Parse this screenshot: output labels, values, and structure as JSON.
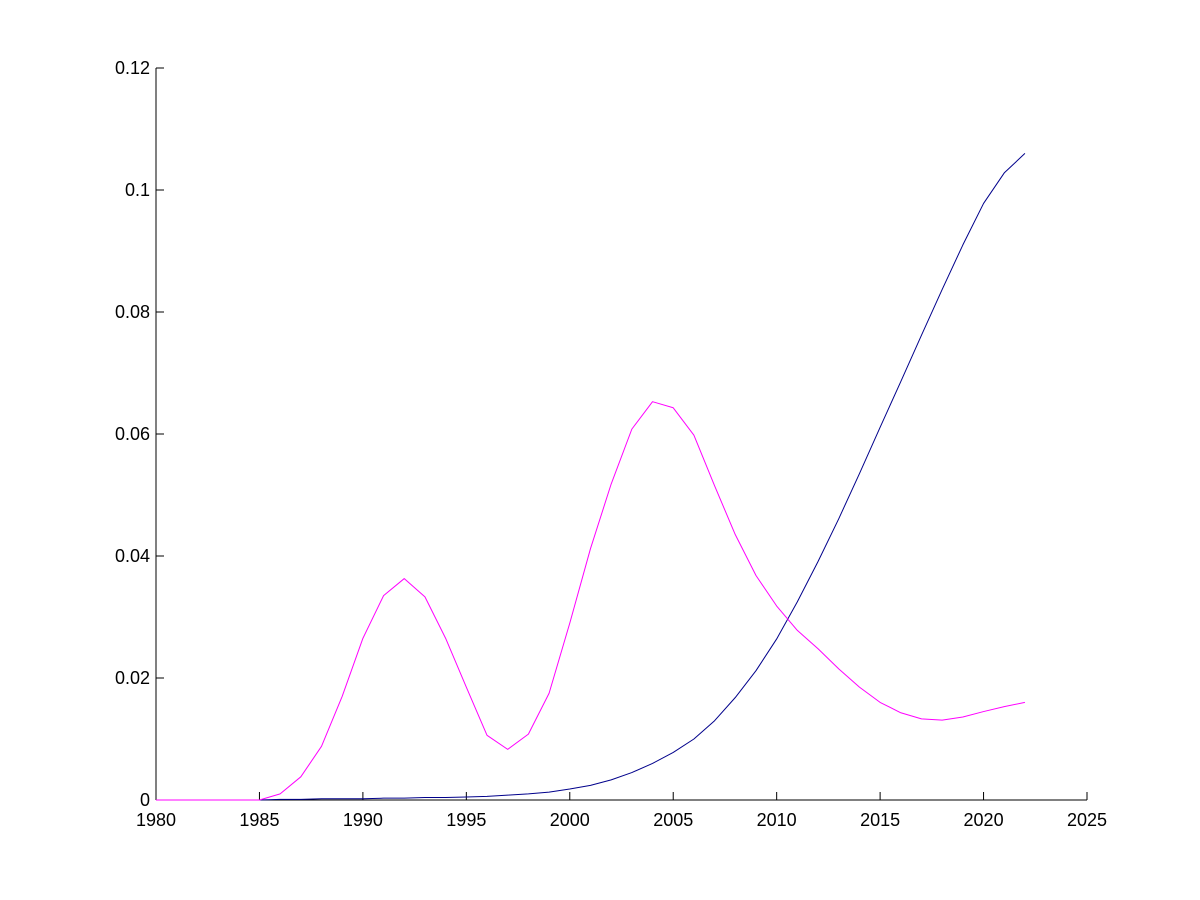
{
  "chart_data": {
    "type": "line",
    "title": "",
    "xlabel": "",
    "ylabel": "",
    "xlim": [
      1980,
      2025
    ],
    "ylim": [
      0,
      0.12
    ],
    "grid": false,
    "legend": "none",
    "xticks": [
      1980,
      1985,
      1990,
      1995,
      2000,
      2005,
      2010,
      2015,
      2020,
      2025
    ],
    "xtick_labels": [
      "1980",
      "1985",
      "1990",
      "1995",
      "2000",
      "2005",
      "2010",
      "2015",
      "2020",
      "2025"
    ],
    "yticks": [
      0,
      0.02,
      0.04,
      0.06,
      0.08,
      0.1,
      0.12
    ],
    "ytick_labels": [
      "0",
      "0.02",
      "0.04",
      "0.06",
      "0.08",
      "0.1",
      "0.12"
    ],
    "series": [
      {
        "color": "#00008b",
        "x": [
          1980,
          1981,
          1982,
          1983,
          1984,
          1985,
          1986,
          1987,
          1988,
          1989,
          1990,
          1991,
          1992,
          1993,
          1994,
          1995,
          1996,
          1997,
          1998,
          1999,
          2000,
          2001,
          2002,
          2003,
          2004,
          2005,
          2006,
          2007,
          2008,
          2009,
          2010,
          2011,
          2012,
          2013,
          2014,
          2015,
          2016,
          2017,
          2018,
          2019,
          2020,
          2021,
          2022
        ],
        "y": [
          0,
          0,
          0,
          0,
          0,
          0,
          0.0001,
          0.0001,
          0.0002,
          0.0002,
          0.0002,
          0.0003,
          0.0003,
          0.0004,
          0.0004,
          0.0005,
          0.0006,
          0.0008,
          0.001,
          0.0013,
          0.0018,
          0.0024,
          0.0033,
          0.0045,
          0.006,
          0.0078,
          0.01,
          0.013,
          0.0168,
          0.0212,
          0.0264,
          0.0325,
          0.0391,
          0.0461,
          0.0535,
          0.0611,
          0.0686,
          0.0762,
          0.0837,
          0.091,
          0.0978,
          0.1028,
          0.106
        ]
      },
      {
        "color": "#ff00ff",
        "x": [
          1980,
          1981,
          1982,
          1983,
          1984,
          1985,
          1986,
          1987,
          1988,
          1989,
          1990,
          1991,
          1992,
          1993,
          1994,
          1995,
          1996,
          1997,
          1998,
          1999,
          2000,
          2001,
          2002,
          2003,
          2004,
          2005,
          2006,
          2007,
          2008,
          2009,
          2010,
          2011,
          2012,
          2013,
          2014,
          2015,
          2016,
          2017,
          2018,
          2019,
          2020,
          2021,
          2022
        ],
        "y": [
          0,
          0,
          0,
          0,
          0,
          0,
          0.001,
          0.0038,
          0.0088,
          0.017,
          0.0265,
          0.0335,
          0.0363,
          0.0333,
          0.0265,
          0.0185,
          0.0106,
          0.0083,
          0.0108,
          0.0175,
          0.029,
          0.0412,
          0.0518,
          0.0608,
          0.0653,
          0.0643,
          0.0598,
          0.0515,
          0.0435,
          0.0368,
          0.0318,
          0.0278,
          0.0248,
          0.0215,
          0.0185,
          0.016,
          0.0143,
          0.0133,
          0.0131,
          0.0136,
          0.0145,
          0.0153,
          0.016
        ]
      }
    ]
  }
}
